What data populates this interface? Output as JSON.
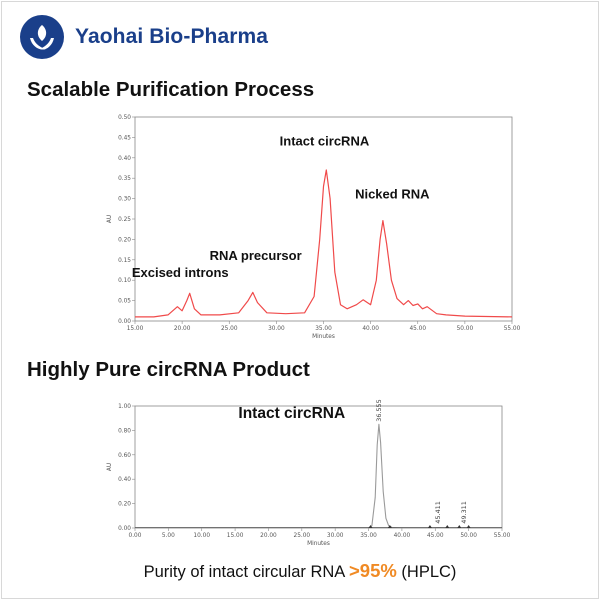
{
  "brand": {
    "name": "Yaohai Bio-Pharma"
  },
  "sections": {
    "title1": "Scalable Purification Process",
    "title2": "Highly Pure circRNA Product"
  },
  "caption": {
    "prefix": "Purity of intact circular RNA ",
    "highlight": ">95%",
    "suffix": " (HPLC)"
  },
  "colors": {
    "brand": "#1a3f8a",
    "trace1": "#f04a4a",
    "trace2": "#9a9a9a",
    "highlight": "#f08a24"
  },
  "chart_data": [
    {
      "type": "line",
      "xlabel": "Minutes",
      "ylabel": "AU",
      "xlim": [
        15,
        55
      ],
      "ylim": [
        0,
        0.5
      ],
      "xticks": [
        "15.00",
        "20.00",
        "25.00",
        "30.00",
        "35.00",
        "40.00",
        "45.00",
        "50.00",
        "55.00"
      ],
      "yticks": [
        "0.00",
        "0.05",
        "0.10",
        "0.15",
        "0.20",
        "0.25",
        "0.30",
        "0.35",
        "0.40",
        "0.45",
        "0.50"
      ],
      "x": [
        15,
        17,
        18.5,
        19.5,
        20,
        20.5,
        20.8,
        21.3,
        22,
        24,
        26,
        27,
        27.5,
        28,
        29,
        31,
        33,
        34,
        34.6,
        35,
        35.3,
        35.7,
        36.2,
        36.8,
        37.5,
        38.5,
        39.2,
        40,
        40.6,
        41,
        41.3,
        41.7,
        42.2,
        42.8,
        43.5,
        44,
        44.5,
        45,
        45.5,
        46,
        47,
        48,
        50,
        55
      ],
      "y": [
        0.01,
        0.01,
        0.015,
        0.035,
        0.025,
        0.05,
        0.068,
        0.03,
        0.015,
        0.015,
        0.02,
        0.05,
        0.07,
        0.045,
        0.02,
        0.018,
        0.02,
        0.06,
        0.2,
        0.33,
        0.37,
        0.3,
        0.12,
        0.04,
        0.03,
        0.04,
        0.052,
        0.04,
        0.1,
        0.2,
        0.246,
        0.19,
        0.1,
        0.055,
        0.04,
        0.05,
        0.038,
        0.042,
        0.03,
        0.035,
        0.018,
        0.015,
        0.012,
        0.01
      ],
      "annotations": [
        {
          "text": "Excised introns",
          "x": 19.8,
          "y": 0.108
        },
        {
          "text": "RNA precursor",
          "x": 27.8,
          "y": 0.15
        },
        {
          "text": "Intact circRNA",
          "x": 35.1,
          "y": 0.43
        },
        {
          "text": "Nicked RNA",
          "x": 42.3,
          "y": 0.3
        }
      ]
    },
    {
      "type": "line",
      "xlabel": "Minutes",
      "ylabel": "AU",
      "xlim": [
        0,
        55
      ],
      "ylim": [
        0,
        1
      ],
      "xticks": [
        "0.00",
        "5.00",
        "10.00",
        "15.00",
        "20.00",
        "25.00",
        "30.00",
        "35.00",
        "40.00",
        "45.00",
        "50.00",
        "55.00"
      ],
      "yticks": [
        "0.00",
        "0.20",
        "0.40",
        "0.60",
        "0.80",
        "1.00"
      ],
      "x": [
        0,
        14,
        35,
        35.5,
        36,
        36.3,
        36.55,
        36.8,
        37.2,
        37.6,
        38,
        38.5,
        40,
        44.5,
        45.411,
        46.5,
        49,
        49.311,
        50,
        55
      ],
      "y": [
        0,
        0,
        0,
        0.02,
        0.25,
        0.68,
        0.85,
        0.7,
        0.3,
        0.08,
        0.02,
        0.005,
        0,
        0,
        0.004,
        0,
        0,
        0.004,
        0,
        0
      ],
      "peak_labels": [
        "36.555",
        "45.411",
        "49.311"
      ],
      "annotations": [
        {
          "text": "Intact circRNA",
          "x": 23.5,
          "y": 0.9
        }
      ]
    }
  ]
}
